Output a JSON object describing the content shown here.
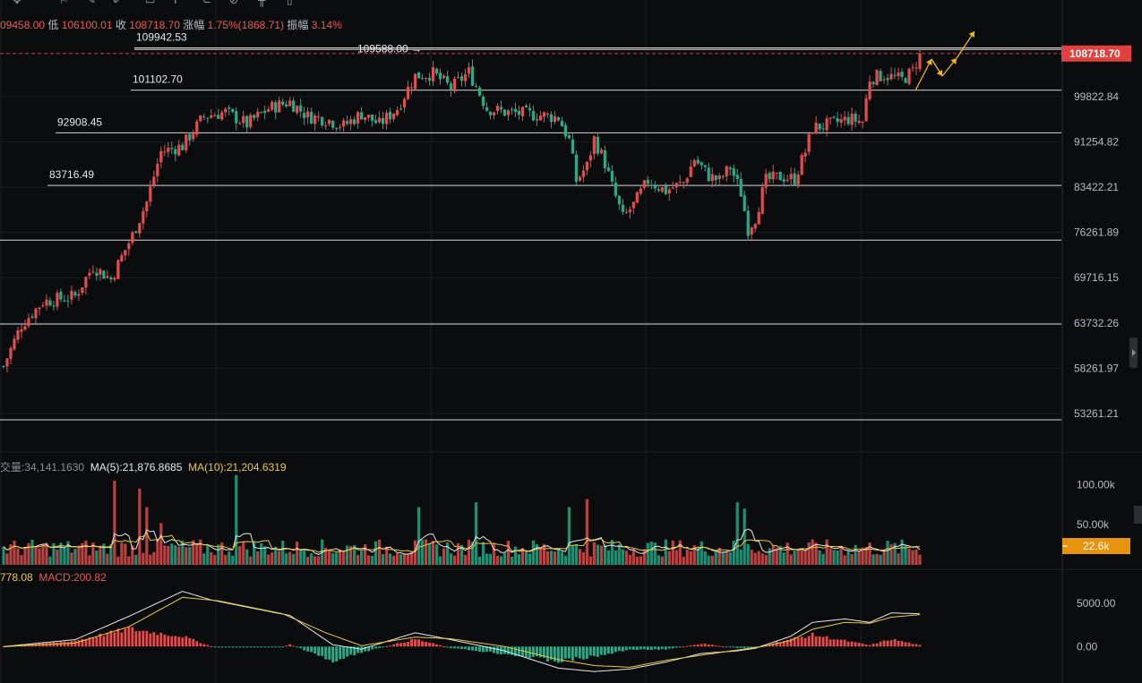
{
  "toolbar": {
    "icons": [
      "crosshair-icon",
      "bookmark-icon",
      "pen-icon",
      "brush-icon",
      "note-icon",
      "text-icon",
      "magnet-icon",
      "ruler-icon",
      "trash-icon"
    ]
  },
  "ohlc": {
    "open_partial": "09458.00",
    "low_label": "低",
    "low": "106100.01",
    "close_label": "收",
    "close": "108718.70",
    "change_label": "涨幅",
    "change": "1.75%(1868.71)",
    "amplitude_label": "振幅",
    "amplitude": "3.14%"
  },
  "volume_indicator": {
    "vol_label": "交量:34,141.1630",
    "ma5": "MA(5):21,876.8685",
    "ma10": "MA(10):21,204.6319"
  },
  "macd_indicator": {
    "dif_partial": "778.08",
    "macd": "MACD:200.82"
  },
  "colors": {
    "up": "#e04f4f",
    "down": "#2fa88a",
    "level_line": "#d8d8d8",
    "price_tag": "#e0403e",
    "vol_tag": "#e6930d",
    "ma5": "#e8e8e8",
    "ma10": "#e9c93c",
    "arrow": "#f0b90b",
    "background": "#0b0c0e"
  },
  "chart_data": [
    {
      "type": "candlestick",
      "panel": "price",
      "y_axis_ticks": [
        "99822.84",
        "91254.82",
        "83422.21",
        "76261.89",
        "69716.15",
        "63732.26",
        "58261.97",
        "53261.21"
      ],
      "ylim": [
        50500,
        113000
      ],
      "y_scale": "log",
      "current_price": "108718.70",
      "levels": [
        {
          "value": 109942.53,
          "label": "109942.53"
        },
        {
          "value": 109588.0,
          "label": "109588.00 →"
        },
        {
          "value": 101102.7,
          "label": "101102.70"
        },
        {
          "value": 92908.45,
          "label": "92908.45"
        },
        {
          "value": 83716.49,
          "label": "83716.49"
        },
        {
          "value": 75100,
          "label": ""
        },
        {
          "value": 63600,
          "label": ""
        },
        {
          "value": 52600,
          "label": ""
        }
      ],
      "trend_keypoints": [
        [
          0,
          58500
        ],
        [
          5,
          63500
        ],
        [
          11,
          66500
        ],
        [
          20,
          67200
        ],
        [
          25,
          71300
        ],
        [
          30,
          69500
        ],
        [
          36,
          75800
        ],
        [
          40,
          81000
        ],
        [
          44,
          89500
        ],
        [
          50,
          90500
        ],
        [
          56,
          96000
        ],
        [
          62,
          96800
        ],
        [
          68,
          94500
        ],
        [
          74,
          97500
        ],
        [
          80,
          98800
        ],
        [
          85,
          96000
        ],
        [
          90,
          95500
        ],
        [
          95,
          94200
        ],
        [
          100,
          96500
        ],
        [
          105,
          94500
        ],
        [
          110,
          97500
        ],
        [
          115,
          104000
        ],
        [
          120,
          104500
        ],
        [
          125,
          101500
        ],
        [
          130,
          104800
        ],
        [
          135,
          97500
        ],
        [
          140,
          96800
        ],
        [
          145,
          96500
        ],
        [
          150,
          96200
        ],
        [
          155,
          95800
        ],
        [
          158,
          91500
        ],
        [
          160,
          84500
        ],
        [
          163,
          87000
        ],
        [
          165,
          91800
        ],
        [
          168,
          87500
        ],
        [
          170,
          83500
        ],
        [
          173,
          78500
        ],
        [
          176,
          80500
        ],
        [
          180,
          84500
        ],
        [
          185,
          82800
        ],
        [
          190,
          84200
        ],
        [
          193,
          88200
        ],
        [
          197,
          85300
        ],
        [
          200,
          84500
        ],
        [
          203,
          86800
        ],
        [
          206,
          82500
        ],
        [
          208,
          76800
        ],
        [
          210,
          78500
        ],
        [
          213,
          84500
        ],
        [
          217,
          85200
        ],
        [
          221,
          84800
        ],
        [
          224,
          89500
        ],
        [
          226,
          93800
        ],
        [
          231,
          94500
        ],
        [
          236,
          95500
        ],
        [
          240,
          95000
        ],
        [
          242,
          103500
        ],
        [
          246,
          104200
        ],
        [
          251,
          103200
        ],
        [
          254,
          105000
        ],
        [
          256,
          108718
        ]
      ],
      "projection": [
        [
          1022,
          101
        ],
        [
          1040,
          66
        ],
        [
          1052,
          85
        ],
        [
          1068,
          65
        ],
        [
          1088,
          35
        ]
      ]
    },
    {
      "type": "bar",
      "panel": "volume",
      "y_axis_ticks": [
        "100.00k",
        "50.00k"
      ],
      "ylim": [
        0,
        115000
      ],
      "current_volume": "22.6k",
      "spikes": [
        [
          31,
          105000
        ],
        [
          38,
          95000
        ],
        [
          40,
          72000
        ],
        [
          44,
          52000
        ],
        [
          65,
          112000
        ],
        [
          116,
          72000
        ],
        [
          132,
          78000
        ],
        [
          158,
          72000
        ],
        [
          163,
          82000
        ],
        [
          205,
          78000
        ],
        [
          207,
          70000
        ]
      ],
      "series": [
        {
          "name": "MA(5)"
        },
        {
          "name": "MA(10)"
        }
      ]
    },
    {
      "type": "bar",
      "panel": "macd",
      "y_axis_ticks": [
        "5000.00",
        "0.00"
      ],
      "ylim": [
        -3500,
        7500
      ],
      "dif_keypoints": [
        [
          0,
          0
        ],
        [
          20,
          800
        ],
        [
          35,
          3500
        ],
        [
          50,
          6400
        ],
        [
          58,
          5400
        ],
        [
          75,
          4000
        ],
        [
          80,
          3600
        ],
        [
          92,
          200
        ],
        [
          100,
          -300
        ],
        [
          115,
          1600
        ],
        [
          125,
          800
        ],
        [
          140,
          -500
        ],
        [
          155,
          -2500
        ],
        [
          165,
          -2900
        ],
        [
          175,
          -2600
        ],
        [
          185,
          -1800
        ],
        [
          195,
          -800
        ],
        [
          205,
          -500
        ],
        [
          210,
          -200
        ],
        [
          220,
          1200
        ],
        [
          226,
          2800
        ],
        [
          235,
          3200
        ],
        [
          242,
          2800
        ],
        [
          248,
          3900
        ],
        [
          256,
          3800
        ]
      ],
      "dea_keypoints": [
        [
          0,
          0
        ],
        [
          20,
          400
        ],
        [
          35,
          2300
        ],
        [
          50,
          5700
        ],
        [
          60,
          5300
        ],
        [
          78,
          3800
        ],
        [
          90,
          1600
        ],
        [
          100,
          100
        ],
        [
          115,
          1100
        ],
        [
          125,
          900
        ],
        [
          140,
          0
        ],
        [
          155,
          -1500
        ],
        [
          165,
          -2200
        ],
        [
          175,
          -2400
        ],
        [
          185,
          -1600
        ],
        [
          195,
          -1000
        ],
        [
          205,
          -400
        ],
        [
          212,
          0
        ],
        [
          220,
          700
        ],
        [
          226,
          2000
        ],
        [
          235,
          2800
        ],
        [
          242,
          2700
        ],
        [
          248,
          3400
        ],
        [
          256,
          3700
        ]
      ],
      "series": [
        {
          "name": "MACD"
        }
      ]
    }
  ]
}
